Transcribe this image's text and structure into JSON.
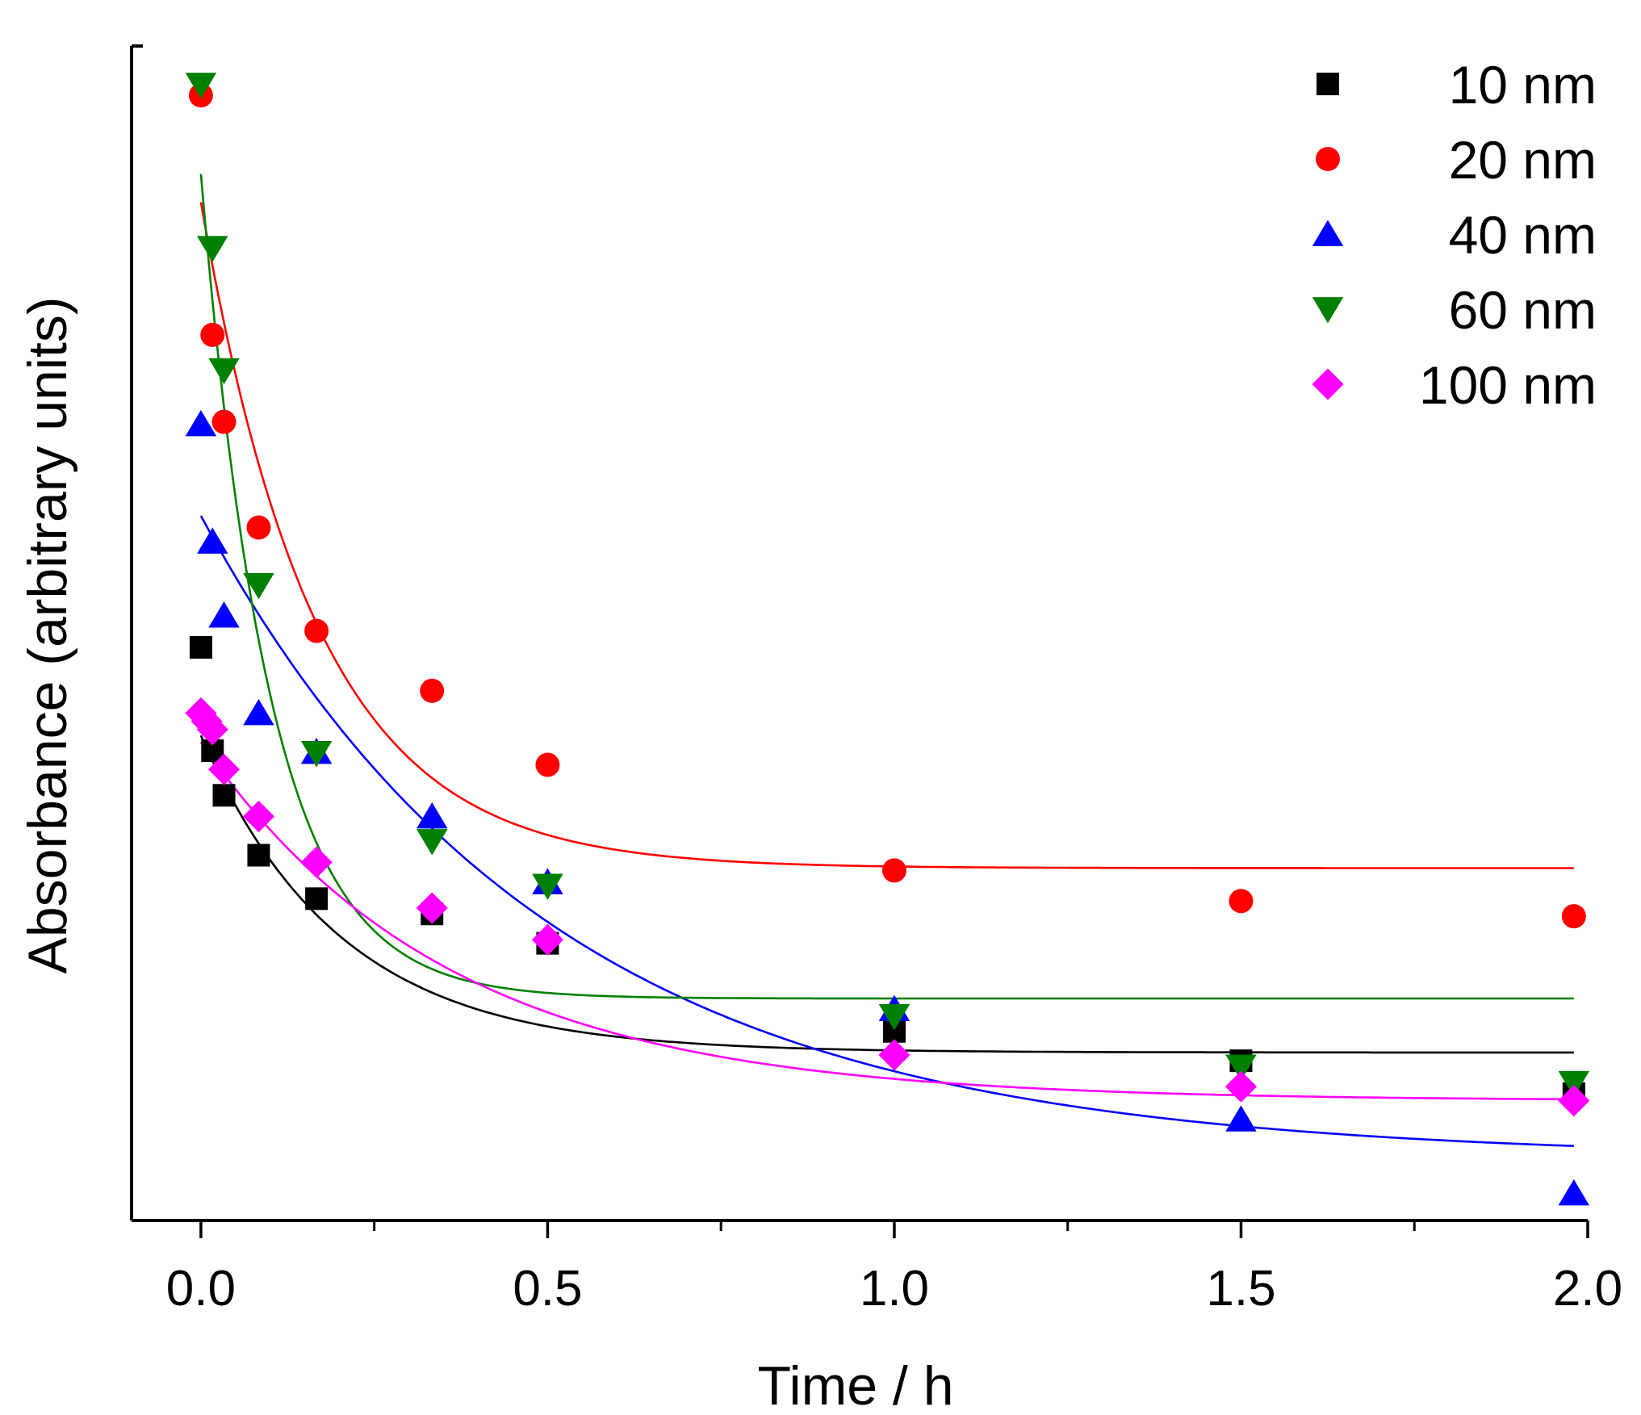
{
  "chart_data": {
    "type": "scatter",
    "xlabel": "Time / h",
    "ylabel": "Absorbance (arbitrary units)",
    "xlim": [
      -0.1,
      2.0
    ],
    "ylim": [
      0,
      100
    ],
    "xticks": [
      0.0,
      0.5,
      1.0,
      1.5,
      2.0
    ],
    "xtick_labels": [
      "0.0",
      "0.5",
      "1.0",
      "1.5",
      "2.0"
    ],
    "xminor": [
      0.25,
      0.75,
      1.25,
      1.75
    ],
    "legend_position": "top-right",
    "series": [
      {
        "name": "10 nm",
        "label": "10 nm",
        "color": "#000000",
        "marker": "square",
        "x": [
          0,
          0.0167,
          0.0333,
          0.0833,
          0.1667,
          0.3333,
          0.5,
          1.0,
          1.5,
          1.98
        ],
        "y": [
          48.8,
          40.0,
          36.2,
          31.1,
          27.4,
          26.1,
          23.6,
          16.1,
          13.6,
          10.8
        ],
        "fit": {
          "A": 27.0,
          "k": 5.0,
          "C": 14.3
        }
      },
      {
        "name": "20 nm",
        "label": "20 nm",
        "color": "#ff0000",
        "marker": "circle",
        "x": [
          0,
          0.0167,
          0.0333,
          0.0833,
          0.1667,
          0.3333,
          0.5,
          1.0,
          1.5,
          1.98
        ],
        "y": [
          95.8,
          75.4,
          68.0,
          59.0,
          50.2,
          45.1,
          38.8,
          29.8,
          27.2,
          25.9
        ],
        "fit": {
          "A": 56.7,
          "k": 6.0,
          "C": 30.0
        }
      },
      {
        "name": "40 nm",
        "label": "40 nm",
        "color": "#0000ff",
        "marker": "triangle-up",
        "x": [
          0,
          0.0167,
          0.0333,
          0.0833,
          0.1667,
          0.3333,
          0.5,
          1.0,
          1.5,
          1.98
        ],
        "y": [
          67.8,
          57.8,
          51.5,
          43.2,
          39.9,
          34.4,
          28.8,
          18.0,
          8.6,
          2.3
        ],
        "fit": {
          "A": 54.7,
          "k": 2.0,
          "C": 5.3
        }
      },
      {
        "name": "60 nm",
        "label": "60 nm",
        "color": "#008000",
        "marker": "triangle-down",
        "x": [
          0,
          0.0167,
          0.0333,
          0.0833,
          0.1667,
          0.3333,
          0.5,
          1.0,
          1.5,
          1.98
        ],
        "y": [
          96.7,
          82.8,
          72.4,
          54.1,
          39.8,
          32.3,
          28.5,
          17.4,
          13.1,
          11.7
        ],
        "fit": {
          "A": 70.2,
          "k": 10.0,
          "C": 18.9
        }
      },
      {
        "name": "100 nm",
        "label": "100 nm",
        "color": "#ff00ff",
        "marker": "diamond",
        "x": [
          0,
          0.0083,
          0.0167,
          0.0333,
          0.0833,
          0.1667,
          0.3333,
          0.5,
          1.0,
          1.5,
          1.98
        ],
        "y": [
          43.2,
          42.5,
          41.8,
          38.4,
          34.4,
          30.5,
          26.6,
          23.9,
          14.1,
          11.4,
          10.2
        ],
        "fit": {
          "A": 30.5,
          "k": 2.8,
          "C": 10.2
        }
      }
    ]
  }
}
